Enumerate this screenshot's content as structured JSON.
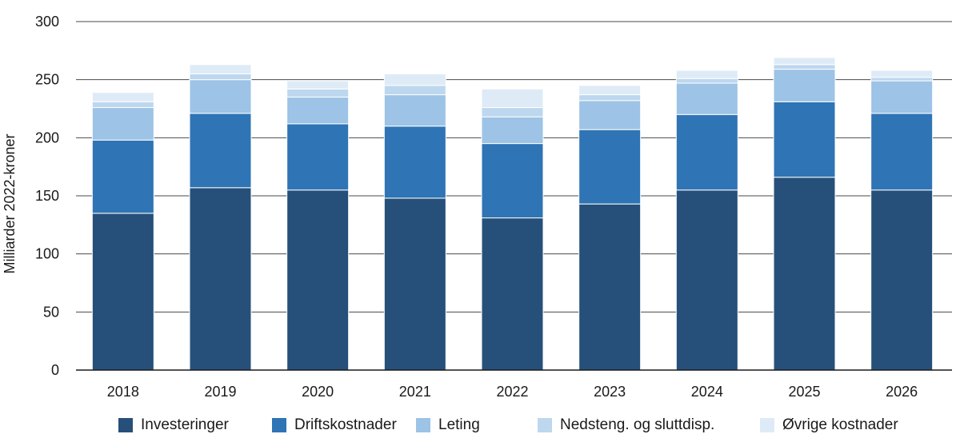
{
  "chart_data": {
    "type": "bar",
    "stacked": true,
    "title": "",
    "xlabel": "",
    "ylabel": "Milliarder 2022-kroner",
    "ylim": [
      0,
      300
    ],
    "yticks": [
      0,
      50,
      100,
      150,
      200,
      250,
      300
    ],
    "grid": true,
    "legend_position": "bottom",
    "categories": [
      "2018",
      "2019",
      "2020",
      "2021",
      "2022",
      "2023",
      "2024",
      "2025",
      "2026"
    ],
    "series": [
      {
        "name": "Investeringer",
        "color": "#26507a",
        "values": [
          135,
          157,
          155,
          148,
          131,
          143,
          155,
          166,
          155
        ]
      },
      {
        "name": "Driftskostnader",
        "color": "#2f74b5",
        "values": [
          63,
          64,
          57,
          62,
          64,
          64,
          65,
          65,
          66
        ]
      },
      {
        "name": "Leting",
        "color": "#9dc3e6",
        "values": [
          28,
          29,
          23,
          27,
          23,
          25,
          27,
          28,
          28
        ]
      },
      {
        "name": "Nedsteng. og sluttdisp.",
        "color": "#bdd7ee",
        "values": [
          5,
          5,
          7,
          8,
          8,
          5,
          4,
          4,
          3
        ]
      },
      {
        "name": "Øvrige kostnader",
        "color": "#deebf7",
        "values": [
          8,
          8,
          7,
          10,
          16,
          8,
          7,
          6,
          6
        ]
      }
    ]
  }
}
